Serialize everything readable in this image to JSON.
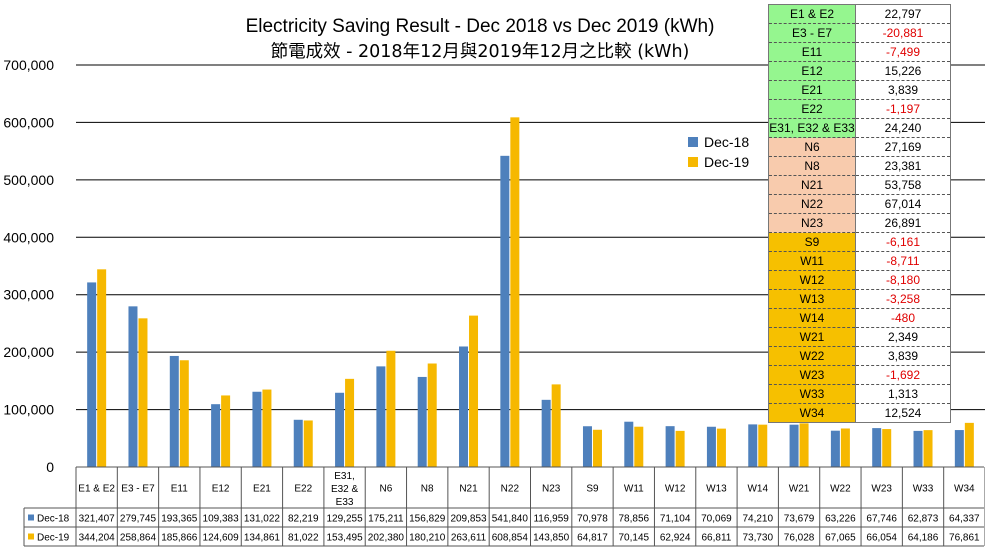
{
  "chart_data": {
    "type": "bar",
    "title": "Electricity Saving Result - Dec 2018 vs Dec 2019 (kWh)",
    "subtitle": "節電成效 - 2018年12月與2019年12月之比較 (kWh)",
    "categories": [
      "E1 & E2",
      "E3 - E7",
      "E11",
      "E12",
      "E21",
      "E22",
      "E31, E32 & E33",
      "N6",
      "N8",
      "N21",
      "N22",
      "N23",
      "S9",
      "W11",
      "W12",
      "W13",
      "W14",
      "W21",
      "W22",
      "W23",
      "W33",
      "W34"
    ],
    "series": [
      {
        "name": "Dec-18",
        "color": "#4e80bc",
        "values": [
          321407,
          279745,
          193365,
          109383,
          131022,
          82219,
          129255,
          175211,
          156829,
          209853,
          541840,
          116959,
          70978,
          78856,
          71104,
          70069,
          74210,
          73679,
          63226,
          67746,
          62873,
          64337
        ],
        "labels": [
          "321,407",
          "279,745",
          "193,365",
          "109,383",
          "131,022",
          "82,219",
          "129,255",
          "175,211",
          "156,829",
          "209,853",
          "541,840",
          "116,959",
          "70,978",
          "78,856",
          "71,104",
          "70,069",
          "74,210",
          "73,679",
          "63,226",
          "67,746",
          "62,873",
          "64,337"
        ]
      },
      {
        "name": "Dec-19",
        "color": "#f6b800",
        "values": [
          344204,
          258864,
          185866,
          124609,
          134861,
          81022,
          153495,
          202380,
          180210,
          263611,
          608854,
          143850,
          64817,
          70145,
          62924,
          66811,
          73730,
          76028,
          67065,
          66054,
          64186,
          76861
        ],
        "labels": [
          "344,204",
          "258,864",
          "185,866",
          "124,609",
          "134,861",
          "81,022",
          "153,495",
          "202,380",
          "180,210",
          "263,611",
          "608,854",
          "143,850",
          "64,817",
          "70,145",
          "62,924",
          "66,811",
          "73,730",
          "76,028",
          "67,065",
          "66,054",
          "64,186",
          "76,861"
        ]
      }
    ],
    "ylim": [
      0,
      700000
    ],
    "yticks": [
      0,
      100000,
      200000,
      300000,
      400000,
      500000,
      600000,
      700000
    ],
    "ytick_labels": [
      "0",
      "100,000",
      "200,000",
      "300,000",
      "400,000",
      "500,000",
      "600,000",
      "700,000"
    ],
    "grid": true,
    "legend": "right"
  },
  "savings_table": [
    {
      "name": "E1 & E2",
      "value": "22,797",
      "negative": false,
      "color": "#95f68f"
    },
    {
      "name": "E3 - E7",
      "value": "-20,881",
      "negative": true,
      "color": "#95f68f"
    },
    {
      "name": "E11",
      "value": "-7,499",
      "negative": true,
      "color": "#95f68f"
    },
    {
      "name": "E12",
      "value": "15,226",
      "negative": false,
      "color": "#95f68f"
    },
    {
      "name": "E21",
      "value": "3,839",
      "negative": false,
      "color": "#95f68f"
    },
    {
      "name": "E22",
      "value": "-1,197",
      "negative": true,
      "color": "#95f68f"
    },
    {
      "name": "E31, E32 & E33",
      "value": "24,240",
      "negative": false,
      "color": "#95f68f"
    },
    {
      "name": "N6",
      "value": "27,169",
      "negative": false,
      "color": "#f8cbad"
    },
    {
      "name": "N8",
      "value": "23,381",
      "negative": false,
      "color": "#f8cbad"
    },
    {
      "name": "N21",
      "value": "53,758",
      "negative": false,
      "color": "#f8cbad"
    },
    {
      "name": "N22",
      "value": "67,014",
      "negative": false,
      "color": "#f8cbad"
    },
    {
      "name": "N23",
      "value": "26,891",
      "negative": false,
      "color": "#f8cbad"
    },
    {
      "name": "S9",
      "value": "-6,161",
      "negative": true,
      "color": "#f6c000"
    },
    {
      "name": "W11",
      "value": "-8,711",
      "negative": true,
      "color": "#f6c000"
    },
    {
      "name": "W12",
      "value": "-8,180",
      "negative": true,
      "color": "#f6c000"
    },
    {
      "name": "W13",
      "value": "-3,258",
      "negative": true,
      "color": "#f6c000"
    },
    {
      "name": "W14",
      "value": "-480",
      "negative": true,
      "color": "#f6c000"
    },
    {
      "name": "W21",
      "value": "2,349",
      "negative": false,
      "color": "#f6c000"
    },
    {
      "name": "W22",
      "value": "3,839",
      "negative": false,
      "color": "#f6c000"
    },
    {
      "name": "W23",
      "value": "-1,692",
      "negative": true,
      "color": "#f6c000"
    },
    {
      "name": "W33",
      "value": "1,313",
      "negative": false,
      "color": "#f6c000"
    },
    {
      "name": "W34",
      "value": "12,524",
      "negative": false,
      "color": "#f6c000"
    }
  ],
  "colors": {
    "negative": "#e00000",
    "positive": "#000000"
  }
}
